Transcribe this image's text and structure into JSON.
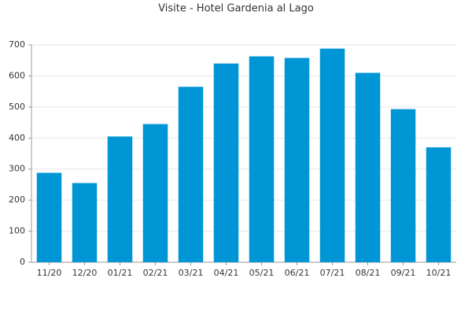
{
  "chart_data": {
    "type": "bar",
    "title": "Visite - Hotel Gardenia al Lago",
    "categories": [
      "11/20",
      "12/20",
      "01/21",
      "02/21",
      "03/21",
      "04/21",
      "05/21",
      "06/21",
      "07/21",
      "08/21",
      "09/21",
      "10/21"
    ],
    "values": [
      288,
      255,
      405,
      445,
      565,
      640,
      663,
      658,
      688,
      610,
      493,
      370
    ],
    "color": "#0096d6",
    "ylim": [
      0,
      700
    ],
    "yticks": [
      0,
      100,
      200,
      300,
      400,
      500,
      600,
      700
    ],
    "grid": true
  }
}
